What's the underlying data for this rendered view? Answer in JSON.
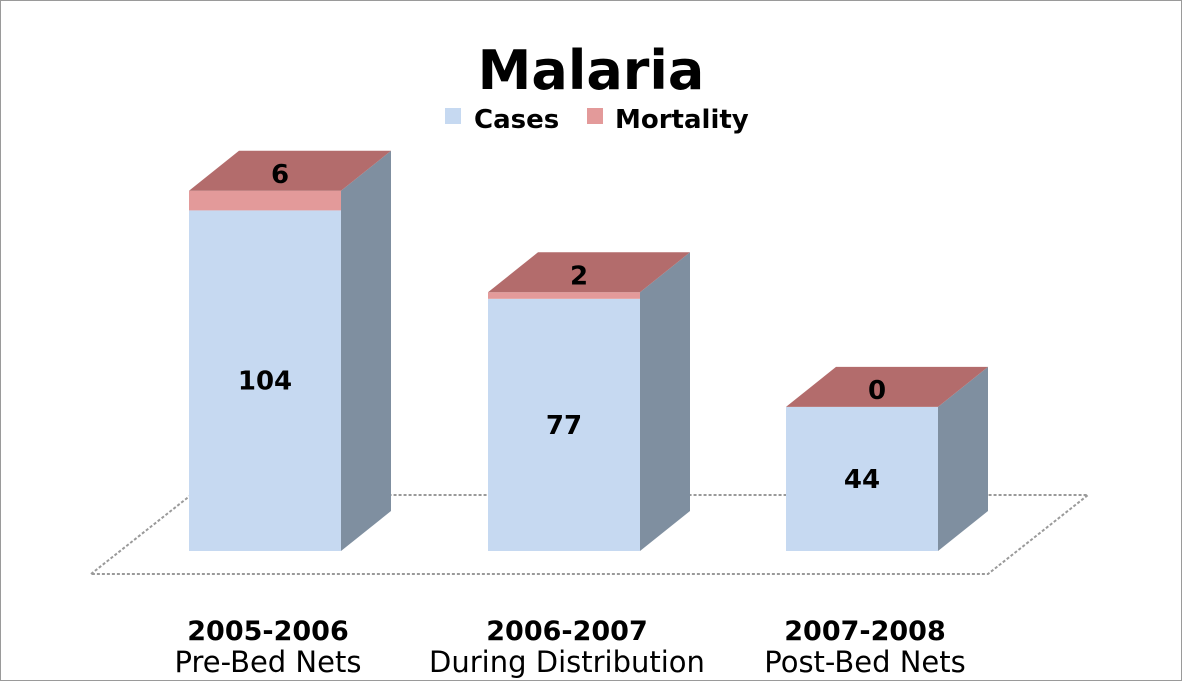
{
  "chart_data": {
    "type": "bar",
    "stacked": true,
    "three_d": true,
    "title": "Malaria",
    "categories": [
      {
        "year": "2005-2006",
        "label": "Pre-Bed Nets"
      },
      {
        "year": "2006-2007",
        "label": "During Distribution"
      },
      {
        "year": "2007-2008",
        "label": "Post-Bed Nets"
      }
    ],
    "series": [
      {
        "name": "Cases",
        "values": [
          104,
          77,
          44
        ],
        "color": "#c6d9f1",
        "side_color": "#7f8fa0"
      },
      {
        "name": "Mortality",
        "values": [
          6,
          2,
          0
        ],
        "color": "#e39a9a",
        "top_color": "#b36c6c"
      }
    ],
    "legend": "top",
    "grid": false,
    "ylim": [
      0,
      110
    ]
  }
}
